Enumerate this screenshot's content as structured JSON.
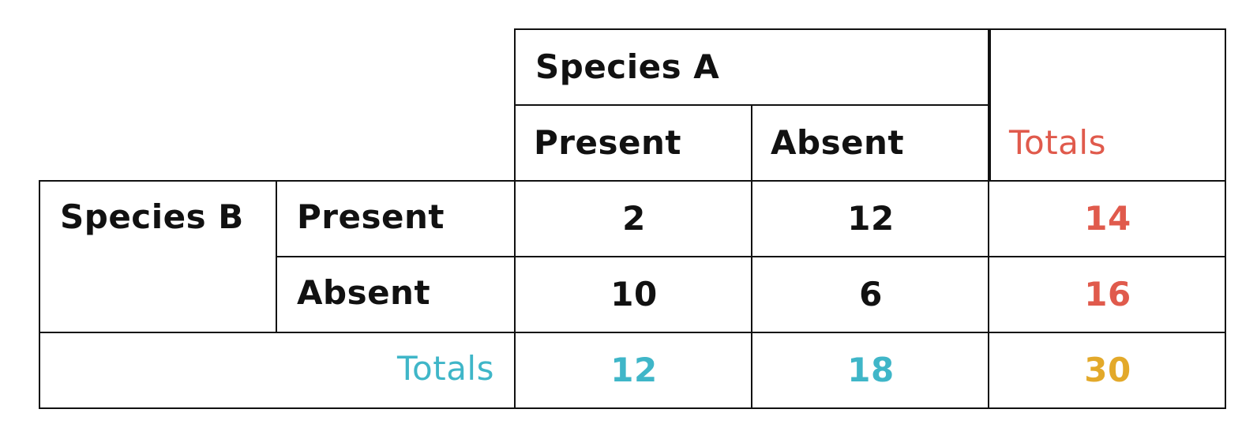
{
  "table": {
    "species_a": "Species A",
    "species_b": "Species B",
    "col_present": "Present",
    "col_absent": "Absent",
    "col_totals": "Totals",
    "row_present": "Present",
    "row_absent": "Absent",
    "row_totals": "Totals",
    "cells": {
      "present_present": "2",
      "present_absent": "12",
      "present_total": "14",
      "absent_present": "10",
      "absent_absent": "6",
      "absent_total": "16",
      "total_present": "12",
      "total_absent": "18",
      "grand_total": "30"
    },
    "colors": {
      "text": "#111111",
      "row_totals": "#e05a4c",
      "column_totals": "#3fb6c8",
      "grand_total": "#e3a92a"
    }
  }
}
